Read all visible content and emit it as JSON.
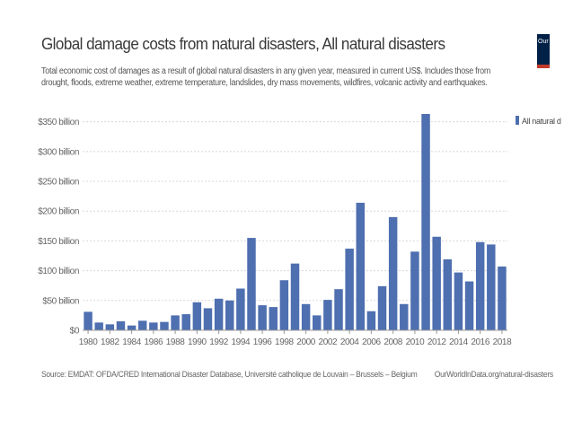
{
  "header": {
    "title": "Global damage costs from natural disasters, All natural disasters",
    "subtitle": "Total economic cost of damages as a result of global natural disasters in any given year, measured in current US$. Includes those from drought, floods, extreme weather, extreme temperature, landslides, dry mass movements, wildfires, volcanic activity and earthquakes.",
    "logo_text": "Our"
  },
  "footer": {
    "source": "Source: EMDAT: OFDA/CRED International Disaster Database, Université catholique de Louvain – Brussels – Belgium",
    "url": "OurWorldInData.org/natural-disasters"
  },
  "colors": {
    "bar": "#4e6fb0",
    "grid": "#d8d8d8",
    "axis": "#999999"
  },
  "chart_data": {
    "type": "bar",
    "title": "Global damage costs from natural disasters, All natural disasters",
    "x": [
      1980,
      1981,
      1982,
      1983,
      1984,
      1985,
      1986,
      1987,
      1988,
      1989,
      1990,
      1991,
      1992,
      1993,
      1994,
      1995,
      1996,
      1997,
      1998,
      1999,
      2000,
      2001,
      2002,
      2003,
      2004,
      2005,
      2006,
      2007,
      2008,
      2009,
      2010,
      2011,
      2012,
      2013,
      2014,
      2015,
      2016,
      2017,
      2018
    ],
    "series": [
      {
        "name": "All natural d",
        "values": [
          31,
          13,
          10,
          15,
          8,
          16,
          13,
          14,
          25,
          27,
          47,
          37,
          53,
          50,
          70,
          155,
          42,
          39,
          84,
          112,
          44,
          25,
          51,
          69,
          137,
          214,
          32,
          74,
          190,
          44,
          132,
          363,
          157,
          119,
          97,
          82,
          148,
          144,
          107
        ]
      }
    ],
    "ylim": [
      0,
      360
    ],
    "y_ticks": [
      0,
      50,
      100,
      150,
      200,
      250,
      300,
      350
    ],
    "y_tick_labels": [
      "$0",
      "$50 billion",
      "$100 billion",
      "$150 billion",
      "$200 billion",
      "$250 billion",
      "$300 billion",
      "$350 billion"
    ],
    "x_tick_labels": [
      "1980",
      "1982",
      "1984",
      "1986",
      "1988",
      "1990",
      "1992",
      "1994",
      "1996",
      "1998",
      "2000",
      "2002",
      "2004",
      "2006",
      "2008",
      "2010",
      "2012",
      "2014",
      "2016",
      "2018"
    ],
    "legend": "right",
    "grid": true
  }
}
